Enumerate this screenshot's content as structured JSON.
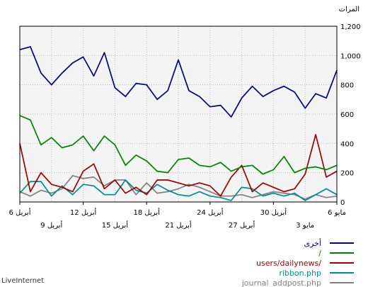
{
  "brand": "LiveInternet",
  "chart_data": {
    "type": "line",
    "ylabel": "المرات",
    "ylim": [
      0,
      1200
    ],
    "yticks": [
      0,
      200,
      400,
      600,
      800,
      "1,000",
      "1,200"
    ],
    "grid": true,
    "x_tick_labels_row1": [
      "6 مايو",
      "30 أبريل",
      "24 أبريل",
      "18 أبريل",
      "12 أبريل",
      "6 أبريل"
    ],
    "x_tick_labels_row2": [
      "3 مايو",
      "27 أبريل",
      "21 أبريل",
      "15 أبريل",
      "9 أبريل"
    ],
    "legend_placement": "bottom-right",
    "series": [
      {
        "name": "أخرى",
        "color": "#000080",
        "values": [
          900,
          710,
          740,
          640,
          750,
          790,
          760,
          720,
          790,
          710,
          580,
          660,
          650,
          720,
          760,
          970,
          760,
          700,
          800,
          810,
          720,
          780,
          1020,
          860,
          990,
          950,
          880,
          800,
          880,
          1060,
          1040
        ]
      },
      {
        "name": "/",
        "color": "#008000",
        "values": [
          250,
          220,
          240,
          230,
          200,
          310,
          220,
          190,
          250,
          240,
          210,
          270,
          240,
          250,
          300,
          290,
          200,
          210,
          280,
          320,
          250,
          390,
          450,
          350,
          450,
          390,
          370,
          440,
          390,
          560,
          590
        ]
      },
      {
        "name": "users/dailynews/",
        "color": "#990000",
        "values": [
          210,
          170,
          460,
          190,
          90,
          70,
          100,
          130,
          70,
          250,
          170,
          40,
          110,
          130,
          110,
          130,
          150,
          150,
          50,
          100,
          60,
          150,
          90,
          260,
          210,
          70,
          100,
          120,
          200,
          70,
          400
        ]
      },
      {
        "name": "ribbon.php",
        "color": "#008b8b",
        "values": [
          50,
          90,
          50,
          10,
          60,
          40,
          60,
          40,
          90,
          100,
          10,
          30,
          40,
          70,
          40,
          50,
          80,
          120,
          60,
          80,
          150,
          50,
          50,
          110,
          120,
          50,
          110,
          40,
          140,
          140,
          60
        ]
      },
      {
        "name": "journal_addpost.php",
        "color": "#808080",
        "values": [
          40,
          30,
          50,
          20,
          50,
          60,
          70,
          50,
          30,
          50,
          40,
          40,
          70,
          100,
          120,
          90,
          70,
          60,
          130,
          50,
          150,
          150,
          110,
          170,
          160,
          180,
          90,
          60,
          80,
          40,
          70
        ]
      }
    ]
  }
}
